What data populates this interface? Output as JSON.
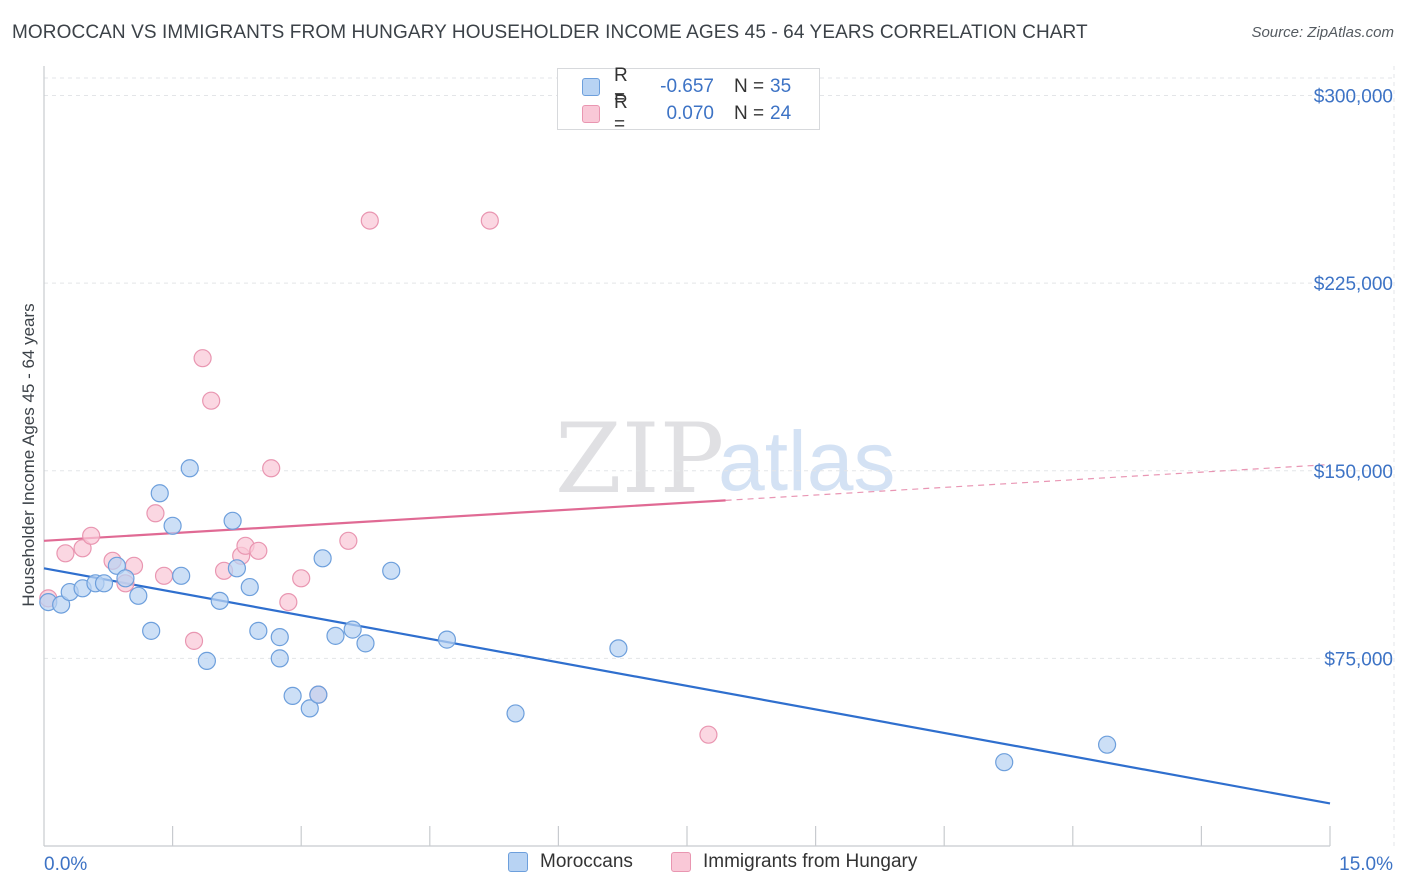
{
  "header": {
    "title": "MOROCCAN VS IMMIGRANTS FROM HUNGARY HOUSEHOLDER INCOME AGES 45 - 64 YEARS CORRELATION CHART",
    "source": "Source: ZipAtlas.com"
  },
  "watermark": {
    "zip": "ZIP",
    "atlas": "atlas"
  },
  "legend": {
    "moroccans": {
      "r_label": "R =",
      "r_value": "-0.657",
      "n_label": "N =",
      "n_value": "35"
    },
    "hungary": {
      "r_label": "R =",
      "r_value": "0.070",
      "n_label": "N =",
      "n_value": "24"
    }
  },
  "colors": {
    "blue_fill": "#b8d3f3",
    "blue_stroke": "#6d9fdc",
    "blue_line": "#2f6fce",
    "pink_fill": "#f9c8d7",
    "pink_stroke": "#e996b1",
    "pink_line": "#e06a94",
    "grid": "#e3e5e8",
    "axis_text": "#3d73c5"
  },
  "chart_data": {
    "type": "scatter",
    "title": "MOROCCAN VS IMMIGRANTS FROM HUNGARY HOUSEHOLDER INCOME AGES 45 - 64 YEARS CORRELATION CHART",
    "xlabel": "",
    "ylabel": "Householder Income Ages 45 - 64 years",
    "xlim": [
      0,
      15
    ],
    "ylim": [
      0,
      307000
    ],
    "x_tick_labels": [
      "0.0%",
      "15.0%"
    ],
    "y_ticks": [
      75000,
      150000,
      225000,
      300000
    ],
    "y_tick_labels": [
      "$75,000",
      "$150,000",
      "$225,000",
      "$300,000"
    ],
    "grid": true,
    "legend_position": "bottom",
    "series": [
      {
        "name": "Moroccans",
        "color": "#6d9fdc",
        "points": [
          [
            0.05,
            97500
          ],
          [
            0.2,
            96500
          ],
          [
            0.3,
            101500
          ],
          [
            0.45,
            103000
          ],
          [
            0.6,
            105000
          ],
          [
            0.7,
            105000
          ],
          [
            0.85,
            112000
          ],
          [
            0.95,
            107000
          ],
          [
            1.1,
            100000
          ],
          [
            1.25,
            86000
          ],
          [
            1.35,
            141000
          ],
          [
            1.5,
            128000
          ],
          [
            1.6,
            108000
          ],
          [
            1.7,
            151000
          ],
          [
            1.9,
            74000
          ],
          [
            2.05,
            98000
          ],
          [
            2.2,
            130000
          ],
          [
            2.25,
            111000
          ],
          [
            2.4,
            103500
          ],
          [
            2.5,
            86000
          ],
          [
            2.75,
            75000
          ],
          [
            2.75,
            83500
          ],
          [
            2.9,
            60000
          ],
          [
            3.1,
            55000
          ],
          [
            3.2,
            60500
          ],
          [
            3.25,
            115000
          ],
          [
            3.4,
            84000
          ],
          [
            3.6,
            86500
          ],
          [
            3.75,
            81000
          ],
          [
            4.05,
            110000
          ],
          [
            4.7,
            82500
          ],
          [
            5.5,
            53000
          ],
          [
            6.7,
            79000
          ],
          [
            11.2,
            33500
          ],
          [
            12.4,
            40500
          ]
        ],
        "trend": {
          "x": [
            0,
            15
          ],
          "y": [
            111000,
            17000
          ],
          "solid_until": 15
        }
      },
      {
        "name": "Immigrants from Hungary",
        "color": "#e996b1",
        "points": [
          [
            0.05,
            99000
          ],
          [
            0.25,
            117000
          ],
          [
            0.45,
            119000
          ],
          [
            0.55,
            124000
          ],
          [
            0.8,
            114000
          ],
          [
            0.95,
            105000
          ],
          [
            1.05,
            112000
          ],
          [
            1.3,
            133000
          ],
          [
            1.4,
            108000
          ],
          [
            1.75,
            82000
          ],
          [
            1.85,
            195000
          ],
          [
            1.95,
            178000
          ],
          [
            2.1,
            110000
          ],
          [
            2.3,
            116000
          ],
          [
            2.35,
            120000
          ],
          [
            2.5,
            118000
          ],
          [
            2.65,
            151000
          ],
          [
            2.85,
            97500
          ],
          [
            3.0,
            107000
          ],
          [
            3.2,
            60500
          ],
          [
            3.55,
            122000
          ],
          [
            3.8,
            250000
          ],
          [
            5.2,
            250000
          ],
          [
            7.75,
            44500
          ]
        ],
        "trend": {
          "x": [
            0,
            15
          ],
          "y": [
            122000,
            152500
          ],
          "solid_until": 7.95
        }
      }
    ]
  },
  "bottom_legend": {
    "moroccans": "Moroccans",
    "hungary": "Immigrants from Hungary"
  }
}
